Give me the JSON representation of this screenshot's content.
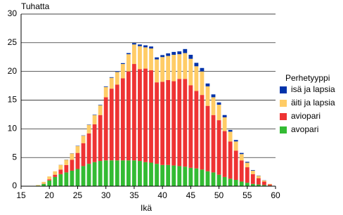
{
  "chart_data": {
    "type": "bar",
    "stacked": true,
    "y_label": "Tuhatta",
    "x_label": "Ikä",
    "legend_title": "Perhetyyppi",
    "legend_position": "right",
    "x": [
      18,
      19,
      20,
      21,
      22,
      23,
      24,
      25,
      26,
      27,
      28,
      29,
      30,
      31,
      32,
      33,
      34,
      35,
      36,
      37,
      38,
      39,
      40,
      41,
      42,
      43,
      44,
      45,
      46,
      47,
      48,
      49,
      50,
      51,
      52,
      53,
      54,
      55,
      56,
      57,
      58,
      59
    ],
    "xlim": [
      15,
      60
    ],
    "xticks": [
      15,
      20,
      25,
      30,
      35,
      40,
      45,
      50,
      55,
      60
    ],
    "ylim": [
      0,
      30
    ],
    "yticks": [
      0,
      5,
      10,
      15,
      20,
      25,
      30
    ],
    "grid": true,
    "series": [
      {
        "name": "avopari",
        "color": "#33bb33",
        "values": [
          0.1,
          0.4,
          1.0,
          1.6,
          2.1,
          2.4,
          2.7,
          3.0,
          3.5,
          3.9,
          4.2,
          4.4,
          4.5,
          4.5,
          4.5,
          4.5,
          4.5,
          4.5,
          4.4,
          4.2,
          4.1,
          3.9,
          3.7,
          3.7,
          3.6,
          3.5,
          3.4,
          3.2,
          3.1,
          2.9,
          2.6,
          2.4,
          2.0,
          1.6,
          1.3,
          1.1,
          0.8,
          0.6,
          0.4,
          0.3,
          0.2,
          0.1
        ]
      },
      {
        "name": "aviopari",
        "color": "#ee3333",
        "values": [
          0,
          0.05,
          0.2,
          0.4,
          0.8,
          1.3,
          1.9,
          2.8,
          4.0,
          5.3,
          6.6,
          8.0,
          11.0,
          12.5,
          13.2,
          14.3,
          15.5,
          16.8,
          16.0,
          16.3,
          16.1,
          14.2,
          14.5,
          14.8,
          14.7,
          15.2,
          15.3,
          14.4,
          13.5,
          13.0,
          11.4,
          10.0,
          9.5,
          8.0,
          6.5,
          5.1,
          3.7,
          2.7,
          1.7,
          1.1,
          0.6,
          0.2
        ]
      },
      {
        "name": "äiti ja lapsia",
        "color": "#ffcc66",
        "values": [
          0.1,
          0.3,
          0.5,
          0.6,
          0.8,
          0.9,
          1.1,
          1.2,
          1.3,
          1.5,
          1.6,
          1.7,
          1.8,
          1.9,
          2.2,
          2.5,
          3.0,
          3.4,
          4.0,
          3.7,
          3.8,
          4.0,
          4.3,
          4.2,
          4.6,
          4.3,
          4.5,
          4.6,
          4.3,
          4.1,
          3.4,
          3.1,
          2.7,
          2.4,
          1.7,
          1.6,
          1.1,
          0.8,
          0.6,
          0.4,
          0.2,
          0.1
        ]
      },
      {
        "name": "isä ja lapsia",
        "color": "#0033aa",
        "values": [
          0,
          0,
          0,
          0,
          0.02,
          0.03,
          0.03,
          0.05,
          0.05,
          0.05,
          0.07,
          0.08,
          0.1,
          0.1,
          0.15,
          0.15,
          0.2,
          0.25,
          0.3,
          0.35,
          0.35,
          0.35,
          0.35,
          0.45,
          0.5,
          0.5,
          0.7,
          0.7,
          0.6,
          0.6,
          0.5,
          0.5,
          0.4,
          0.4,
          0.3,
          0.25,
          0.2,
          0.15,
          0.1,
          0.05,
          0.03,
          0
        ]
      }
    ]
  }
}
